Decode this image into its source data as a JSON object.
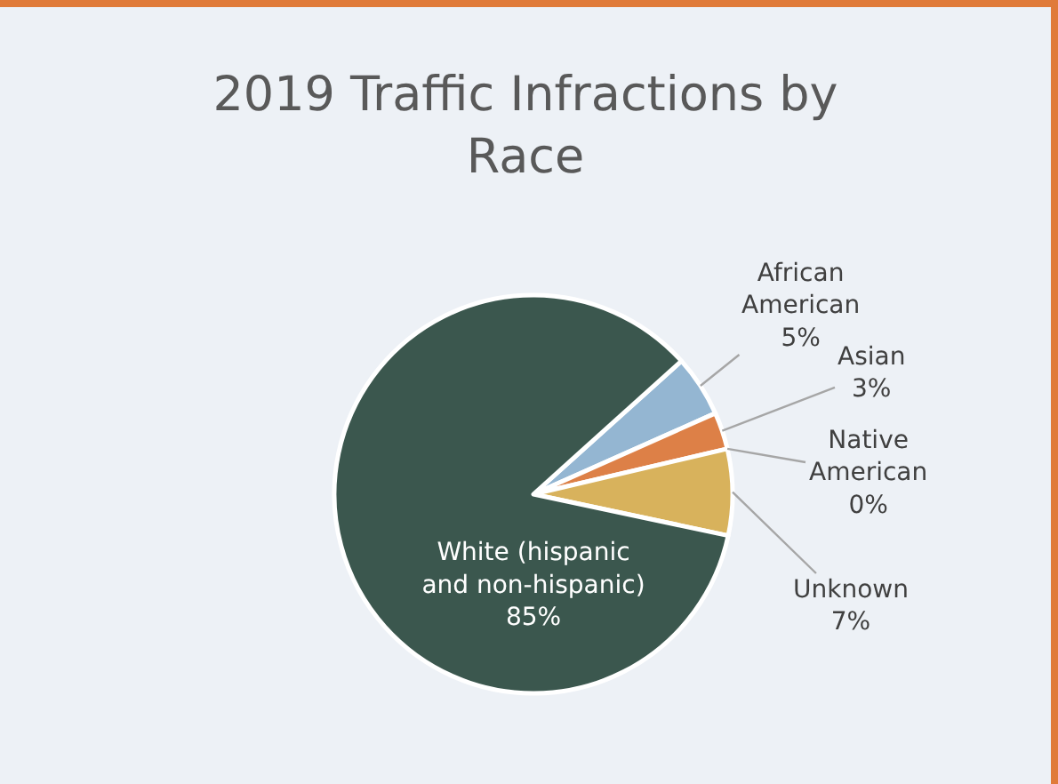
{
  "chart_data": {
    "type": "pie",
    "title": "2019 Traffic Infractions by Race",
    "categories": [
      "African American",
      "Asian",
      "Native American",
      "Unknown",
      "White (hispanic and non-hispanic)"
    ],
    "values": [
      5,
      3,
      0,
      7,
      85
    ],
    "colors": [
      "#94b6d2",
      "#dd8047",
      "#a5ab81",
      "#d8b25c",
      "#3b574e"
    ],
    "value_labels": [
      "5%",
      "3%",
      "0%",
      "7%",
      "85%"
    ]
  }
}
